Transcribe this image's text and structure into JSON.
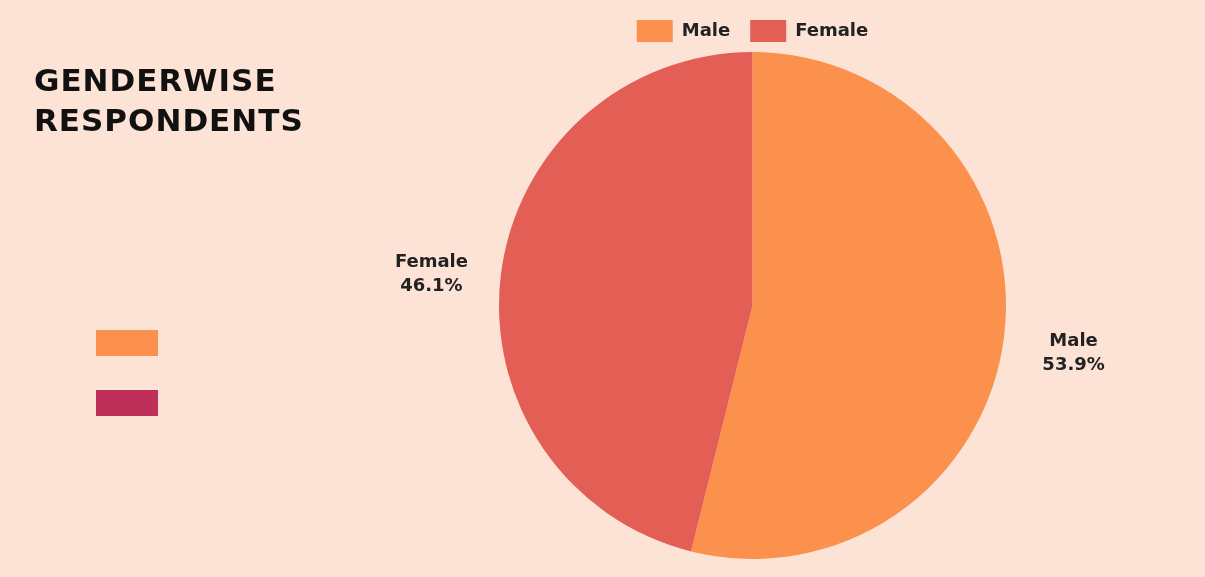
{
  "chart_data": {
    "type": "pie",
    "title": "GENDERWISE RESPONDENTS",
    "categories": [
      "Male",
      "Female"
    ],
    "values": [
      53.9,
      46.1
    ],
    "colors": [
      "#fb914c",
      "#e35e55"
    ],
    "value_labels": [
      "53.9%",
      "46.1%"
    ],
    "legend": "top"
  }
}
